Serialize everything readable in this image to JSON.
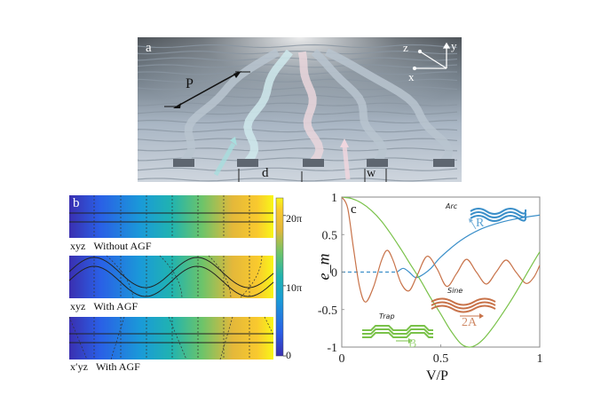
{
  "panel_a": {
    "label": "a",
    "annotations": {
      "period": "P",
      "spacing": "d",
      "width": "w"
    },
    "axes": {
      "z": "z",
      "y": "y",
      "x": "x"
    }
  },
  "panel_b": {
    "label": "b",
    "strips": [
      {
        "frame": "xyz",
        "caption": "Without AGF"
      },
      {
        "frame": "xyz",
        "caption": "With AGF"
      },
      {
        "frame": "x′yz",
        "caption": "With AGF"
      }
    ],
    "colorbar": {
      "ticks": [
        "0",
        "10π",
        "20π"
      ],
      "tick_values": [
        0,
        10,
        20
      ],
      "range_units_pi": [
        0,
        22.5
      ]
    }
  },
  "chart_data": {
    "type": "line",
    "panel_label": "c",
    "xlabel": "V/P",
    "ylabel": "e_m",
    "xlim": [
      0,
      1
    ],
    "ylim": [
      -1,
      1
    ],
    "xticks": [
      "0",
      "0.5",
      "1"
    ],
    "yticks": [
      "1",
      "0.5",
      "0",
      "-0.5",
      "-1"
    ],
    "ytick_values": [
      1,
      0.5,
      0,
      -0.5,
      -1
    ],
    "xtick_values": [
      0,
      0.5,
      1
    ],
    "series": [
      {
        "name": "Arc",
        "param": "R",
        "color": "#3b8fc9",
        "x": [
          0,
          0.1,
          0.2,
          0.28,
          0.31,
          0.34,
          0.37,
          0.4,
          0.45,
          0.5,
          0.6,
          0.7,
          0.8,
          0.9,
          1.0
        ],
        "y": [
          0,
          0,
          0,
          0,
          0.05,
          0.0,
          -0.07,
          -0.05,
          0.05,
          0.2,
          0.42,
          0.57,
          0.66,
          0.72,
          0.76
        ],
        "dashed_until": 0.3
      },
      {
        "name": "Sine",
        "param": "2A",
        "color": "#c8734a",
        "x": [
          0,
          0.03,
          0.06,
          0.09,
          0.12,
          0.16,
          0.2,
          0.23,
          0.26,
          0.3,
          0.34,
          0.38,
          0.43,
          0.48,
          0.53,
          0.58,
          0.63,
          0.68,
          0.73,
          0.78,
          0.83,
          0.88,
          0.93,
          0.97,
          1.0
        ],
        "y": [
          1,
          0.85,
          0.3,
          -0.2,
          -0.4,
          -0.2,
          0.15,
          0.29,
          0.15,
          -0.15,
          -0.25,
          -0.05,
          0.21,
          0.05,
          -0.19,
          -0.02,
          0.17,
          0.0,
          -0.16,
          0.0,
          0.16,
          0.0,
          -0.15,
          -0.07,
          0.09
        ]
      },
      {
        "name": "Trap",
        "param": "B",
        "color": "#7ac24a",
        "x": [
          0,
          0.05,
          0.1,
          0.15,
          0.2,
          0.25,
          0.3,
          0.35,
          0.4,
          0.45,
          0.5,
          0.55,
          0.6,
          0.64,
          0.68,
          0.72,
          0.76,
          0.8,
          0.85,
          0.9,
          0.95,
          1.0
        ],
        "y": [
          1,
          0.98,
          0.92,
          0.82,
          0.68,
          0.5,
          0.3,
          0.09,
          -0.12,
          -0.35,
          -0.56,
          -0.78,
          -0.95,
          -1.0,
          -0.97,
          -0.88,
          -0.75,
          -0.6,
          -0.4,
          -0.18,
          0.05,
          0.27
        ]
      }
    ],
    "legend_insets": [
      {
        "name": "Arc",
        "param": "R",
        "placement": "top-right"
      },
      {
        "name": "Sine",
        "param": "2A",
        "placement": "center-right"
      },
      {
        "name": "Trap",
        "param": "B",
        "placement": "bottom-left"
      }
    ]
  }
}
